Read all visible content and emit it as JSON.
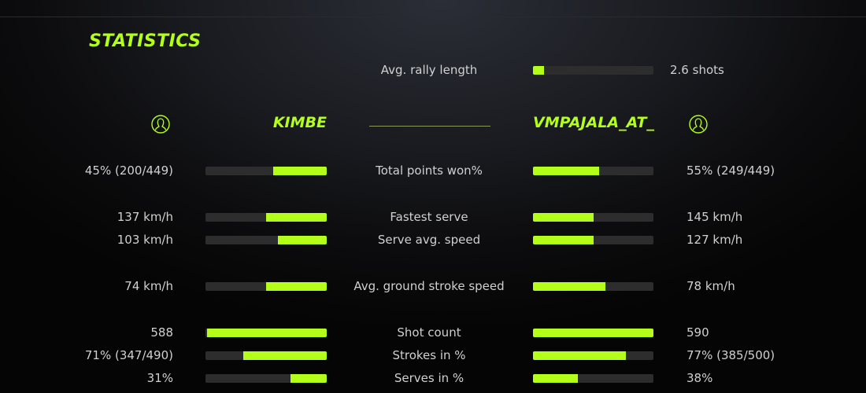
{
  "title": "STATISTICS",
  "accent_color": "#b4ff1a",
  "rally": {
    "label": "Avg. rally length",
    "value": "2.6 shots",
    "fill": 0.09
  },
  "players": {
    "left": {
      "name": "KIMBE",
      "icon": "user-circle-icon"
    },
    "right": {
      "name": "VMPAJALA_AT_",
      "icon": "user-circle-icon"
    }
  },
  "stats": [
    {
      "label": "Total points won%",
      "left": "45% (200/449)",
      "right": "55% (249/449)",
      "left_fill": 0.44,
      "right_fill": 0.55
    },
    {
      "label": "Fastest serve",
      "left": "137 km/h",
      "right": "145 km/h",
      "left_fill": 0.5,
      "right_fill": 0.5
    },
    {
      "label": "Serve avg. speed",
      "left": "103 km/h",
      "right": "127 km/h",
      "left_fill": 0.4,
      "right_fill": 0.5
    },
    {
      "label": "Avg. ground stroke speed",
      "left": "74 km/h",
      "right": "78 km/h",
      "left_fill": 0.5,
      "right_fill": 0.6
    },
    {
      "label": "Shot count",
      "left": "588",
      "right": "590",
      "left_fill": 0.99,
      "right_fill": 1.0
    },
    {
      "label": "Strokes in %",
      "left": "71% (347/490)",
      "right": "77% (385/500)",
      "left_fill": 0.69,
      "right_fill": 0.77
    },
    {
      "label": "Serves in %",
      "left": "31%",
      "right": "38%",
      "left_fill": 0.3,
      "right_fill": 0.37
    }
  ]
}
